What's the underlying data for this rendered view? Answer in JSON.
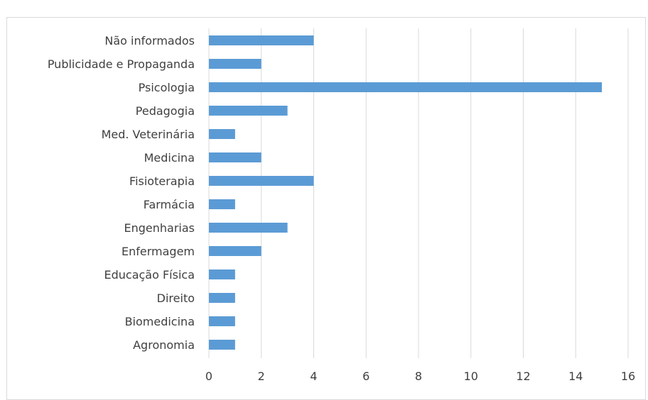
{
  "chart_data": {
    "type": "bar",
    "orientation": "horizontal",
    "categories": [
      "Não informados",
      "Publicidade e Propaganda",
      "Psicologia",
      "Pedagogia",
      "Med. Veterinária",
      "Medicina",
      "Fisioterapia",
      "Farmácia",
      "Engenharias",
      "Enfermagem",
      "Educação Física",
      "Direito",
      "Biomedicina",
      "Agronomia"
    ],
    "values": [
      4,
      2,
      15,
      3,
      1,
      2,
      4,
      1,
      3,
      2,
      1,
      1,
      1,
      1
    ],
    "xlim": [
      0,
      16
    ],
    "xticks": [
      "0",
      "2",
      "4",
      "6",
      "8",
      "10",
      "12",
      "14",
      "16"
    ],
    "grid": "vertical",
    "bar_color": "#5b9bd5",
    "title": "",
    "xlabel": "",
    "ylabel": ""
  },
  "colors": {
    "grid": "#d9d9d9",
    "label": "#404040",
    "bar": "#5b9bd5"
  }
}
